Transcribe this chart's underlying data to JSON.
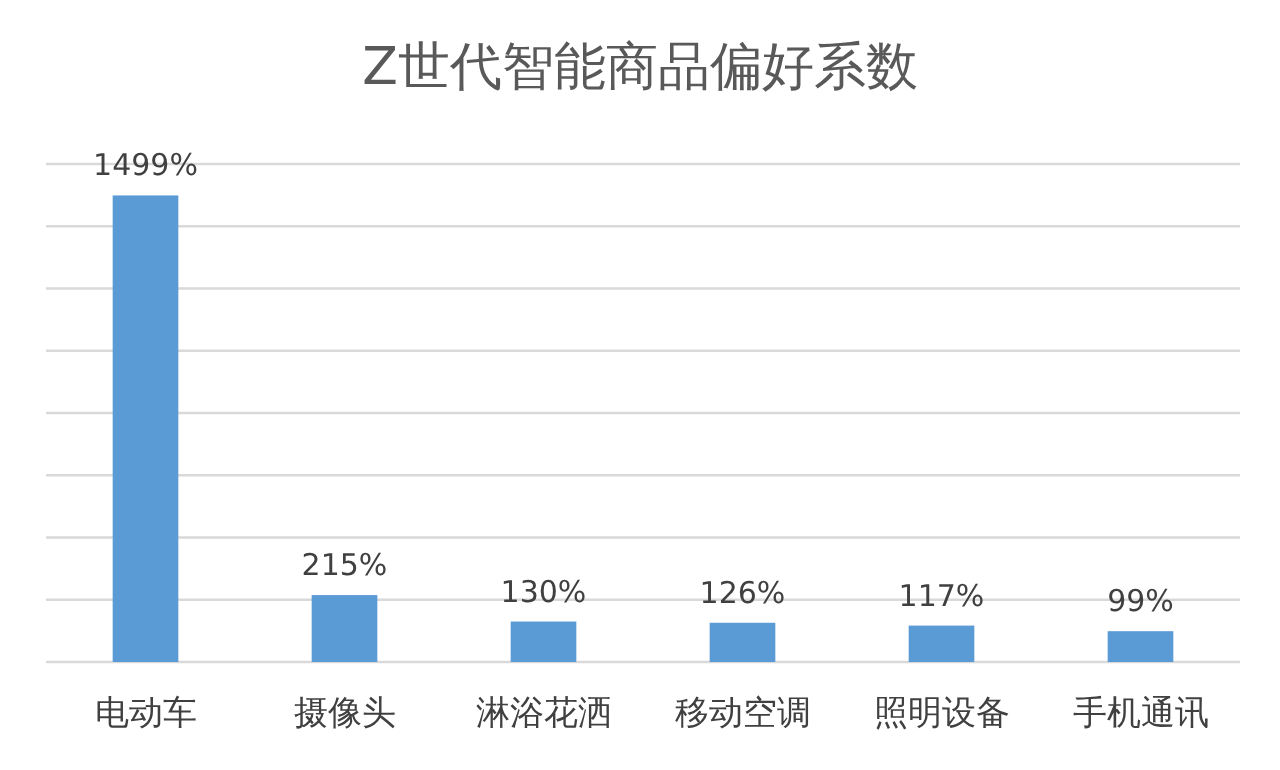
{
  "chart_data": {
    "type": "bar",
    "title": "Z世代智能商品偏好系数",
    "categories": [
      "电动车",
      "摄像头",
      "淋浴花洒",
      "移动空调",
      "照明设备",
      "手机通讯"
    ],
    "values": [
      1499,
      215,
      130,
      126,
      117,
      99
    ],
    "value_labels": [
      "1499%",
      "215%",
      "130%",
      "126%",
      "117%",
      "99%"
    ],
    "color": "#5b9bd5",
    "ylim": [
      0,
      1600
    ],
    "yticks": [
      {
        "value": 0,
        "label": null
      },
      {
        "value": 200,
        "label": null
      },
      {
        "value": 400,
        "label": null
      },
      {
        "value": 600,
        "label": null
      },
      {
        "value": 800,
        "label": null
      },
      {
        "value": 1000,
        "label": null
      },
      {
        "value": 1200,
        "label": null
      },
      {
        "value": 1400,
        "label": null
      },
      {
        "value": 1600,
        "label": null
      }
    ],
    "grid": "y",
    "tick_labels": "x"
  }
}
